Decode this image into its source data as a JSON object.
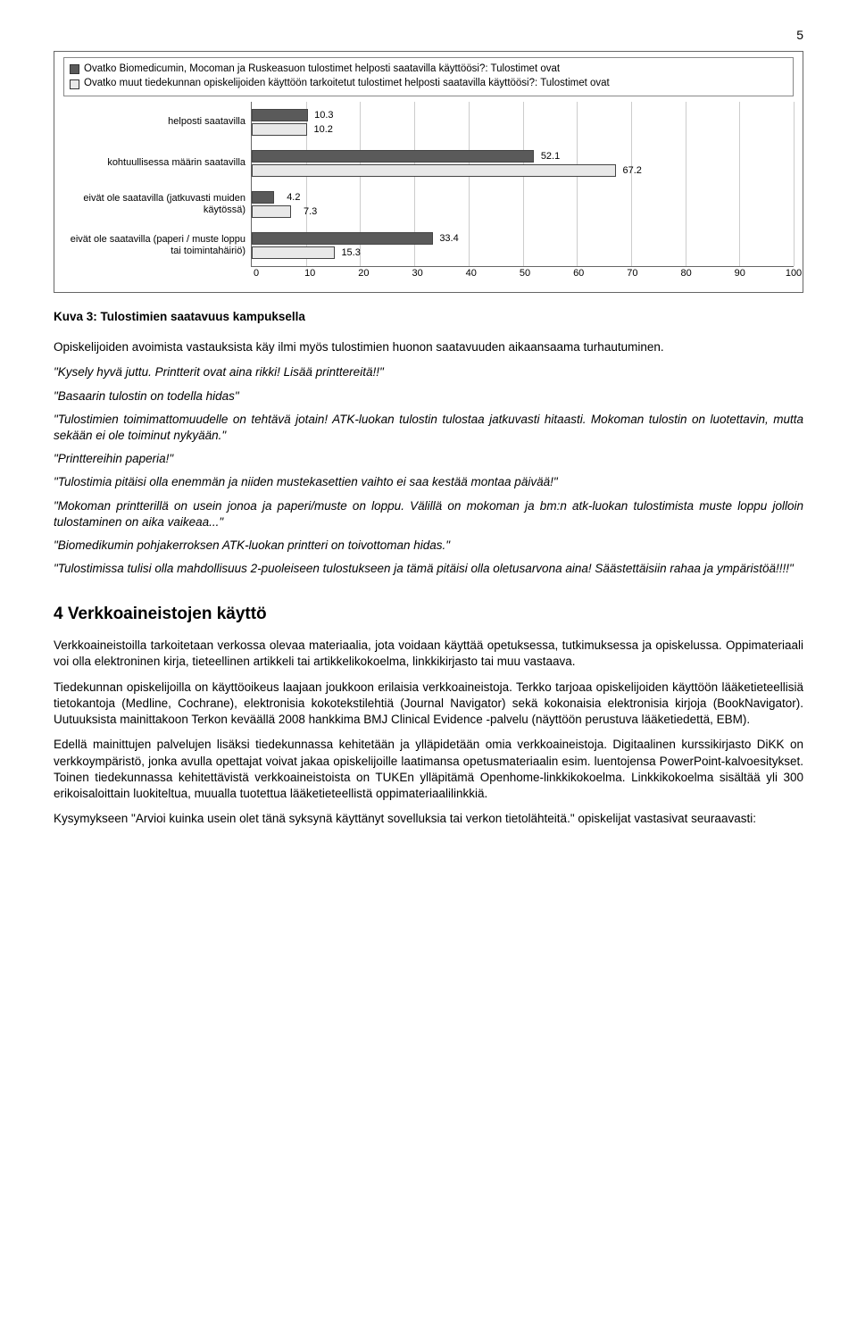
{
  "page_number": "5",
  "chart": {
    "type": "bar",
    "legend": [
      {
        "label": "Ovatko Biomedicumin, Mocoman ja Ruskeasuon tulostimet helposti saatavilla käyttöösi?: Tulostimet ovat",
        "color": "#5a5a5a"
      },
      {
        "label": "Ovatko muut tiedekunnan opiskelijoiden käyttöön tarkoitetut tulostimet helposti saatavilla käyttöösi?: Tulostimet ovat",
        "color": "#e8e8e8"
      }
    ],
    "categories": [
      "helposti saatavilla",
      "kohtuullisessa määrin saatavilla",
      "eivät ole saatavilla (jatkuvasti muiden käytössä)",
      "eivät ole saatavilla (paperi / muste loppu tai toimintahäiriö)"
    ],
    "series": [
      {
        "color": "#5a5a5a",
        "values": [
          10.3,
          52.1,
          4.2,
          33.4
        ]
      },
      {
        "color": "#e8e8e8",
        "values": [
          10.2,
          67.2,
          7.3,
          15.3
        ]
      }
    ],
    "xmax": 100,
    "xtick_step": 10,
    "border_color": "#666666",
    "grid_color": "#cccccc",
    "label_fontsize": 11
  },
  "caption": "Kuva 3: Tulostimien saatavuus kampuksella",
  "intro_para": "Opiskelijoiden avoimista vastauksista käy ilmi myös tulostimien huonon saatavuuden aikaansaama turhautuminen.",
  "quotes": [
    "\"Kysely hyvä juttu. Printterit ovat aina rikki! Lisää printtereitä!!\"",
    "\"Basaarin tulostin on todella hidas\"",
    "\"Tulostimien toimimattomuudelle on tehtävä jotain! ATK-luokan tulostin tulostaa jatkuvasti hitaasti. Mokoman tulostin on luotettavin, mutta sekään ei ole toiminut nykyään.\"",
    "\"Printtereihin paperia!\"",
    "\"Tulostimia pitäisi olla enemmän ja niiden mustekasettien vaihto ei saa kestää montaa päivää!\"",
    "\"Mokoman printterillä on usein jonoa ja paperi/muste on loppu. Välillä on mokoman ja bm:n atk-luokan tulostimista muste loppu jolloin tulostaminen on aika vaikeaa...\"",
    "\"Biomedikumin pohjakerroksen ATK-luokan printteri on toivottoman hidas.\"",
    "\"Tulostimissa tulisi olla mahdollisuus 2-puoleiseen tulostukseen ja tämä pitäisi olla oletusarvona aina! Säästettäisiin rahaa ja ympäristöä!!!!\""
  ],
  "section_heading": "4  Verkkoaineistojen käyttö",
  "body_paras": [
    "Verkkoaineistoilla tarkoitetaan verkossa olevaa materiaalia, jota voidaan käyttää opetuksessa, tutkimuksessa ja opiskelussa. Oppimateriaali voi olla elektroninen kirja, tieteellinen artikkeli tai artikkelikokoelma, linkkikirjasto tai muu vastaava.",
    "Tiedekunnan opiskelijoilla on käyttöoikeus laajaan joukkoon erilaisia verkkoaineistoja. Terkko tarjoaa opiskelijoiden käyttöön lääketieteellisiä tietokantoja (Medline, Cochrane), elektronisia kokotekstilehtiä (Journal Navigator) sekä kokonaisia elektronisia kirjoja (BookNavigator). Uutuuksista mainittakoon Terkon keväällä 2008 hankkima BMJ Clinical Evidence -palvelu (näyttöön perustuva lääketiedettä, EBM).",
    "Edellä mainittujen palvelujen lisäksi tiedekunnassa kehitetään ja ylläpidetään omia verkkoaineistoja. Digitaalinen kurssikirjasto DiKK on verkkoympäristö, jonka avulla opettajat voivat jakaa opiskelijoille laatimansa opetusmateriaalin esim. luentojensa PowerPoint-kalvoesitykset. Toinen tiedekunnassa kehitettävistä verkkoaineistoista on TUKEn ylläpitämä Openhome-linkkikokoelma. Linkkikokoelma sisältää yli 300 erikoisaloittain luokiteltua, muualla tuotettua lääketieteellistä oppimateriaalilinkkiä.",
    "Kysymykseen \"Arvioi kuinka usein olet tänä syksynä käyttänyt sovelluksia tai verkon tietolähteitä.\" opiskelijat vastasivat seuraavasti:"
  ]
}
